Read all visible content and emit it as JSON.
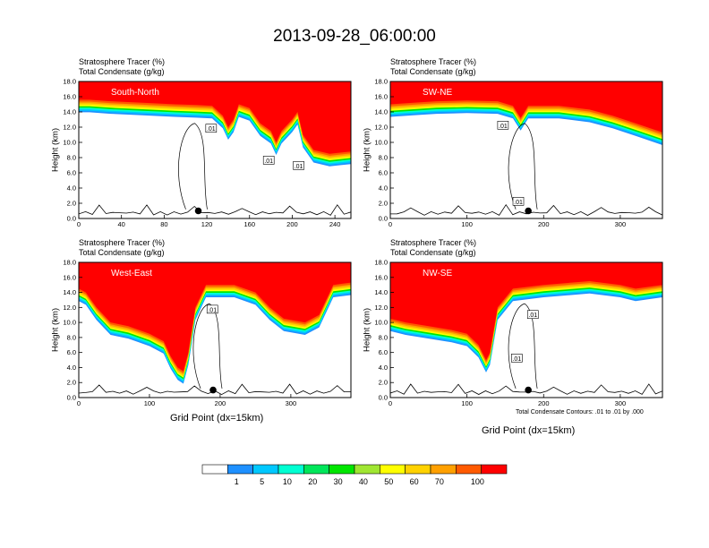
{
  "title": "2013-09-28_06:00:00",
  "label_line1": "Stratosphere Tracer   (%)",
  "label_line2": "Total Condensate   (g/kg)",
  "ylabel": "Height (km)",
  "xlabel": "Grid Point (dx=15km)",
  "contour_note": "Total Condensate Contours: .01 to .01 by .000",
  "contour_label": ".01",
  "colors": {
    "levels": [
      "#ffffff",
      "#1e90ff",
      "#00c8ff",
      "#00ffd2",
      "#00e65a",
      "#00e600",
      "#a0e632",
      "#ffff00",
      "#ffd200",
      "#ffa000",
      "#ff5a00",
      "#ff0000"
    ],
    "red": "#ff0000"
  },
  "colorbar": {
    "labels": [
      "1",
      "5",
      "10",
      "20",
      "30",
      "40",
      "50",
      "60",
      "70",
      "100"
    ]
  },
  "chart_data": [
    {
      "type": "heatmap",
      "name": "South-North",
      "xlim": [
        0,
        255
      ],
      "ylim": [
        0,
        18
      ],
      "xticks": [
        "0",
        "40",
        "80",
        "120",
        "160",
        "200",
        "240"
      ],
      "yticks": [
        "0.0",
        "2.0",
        "4.0",
        "6.0",
        "8.0",
        "10.0",
        "12.0",
        "14.0",
        "16.0",
        "18.0"
      ],
      "tropopause_km": [
        [
          0,
          15.6
        ],
        [
          10,
          15.6
        ],
        [
          30,
          15.4
        ],
        [
          60,
          15.2
        ],
        [
          90,
          15.0
        ],
        [
          110,
          14.9
        ],
        [
          125,
          14.8
        ],
        [
          135,
          13.5
        ],
        [
          140,
          12.0
        ],
        [
          145,
          13.0
        ],
        [
          150,
          15.0
        ],
        [
          160,
          14.5
        ],
        [
          170,
          12.5
        ],
        [
          180,
          11.5
        ],
        [
          185,
          10.0
        ],
        [
          190,
          11.5
        ],
        [
          200,
          13.0
        ],
        [
          205,
          14.0
        ],
        [
          210,
          11.0
        ],
        [
          220,
          9.0
        ],
        [
          235,
          8.5
        ],
        [
          255,
          8.8
        ]
      ],
      "marker": [
        112,
        1.0
      ],
      "contour_labels": [
        [
          124,
          11.8
        ],
        [
          178,
          7.6
        ],
        [
          206,
          6.9
        ]
      ]
    },
    {
      "type": "heatmap",
      "name": "SW-NE",
      "xlim": [
        0,
        355
      ],
      "ylim": [
        0,
        18
      ],
      "xticks": [
        "0",
        "100",
        "200",
        "300"
      ],
      "yticks": [
        "0.0",
        "2.0",
        "4.0",
        "6.0",
        "8.0",
        "10.0",
        "12.0",
        "14.0",
        "16.0",
        "18.0"
      ],
      "tropopause_km": [
        [
          0,
          15.0
        ],
        [
          30,
          15.2
        ],
        [
          60,
          15.4
        ],
        [
          100,
          15.5
        ],
        [
          140,
          15.4
        ],
        [
          160,
          14.8
        ],
        [
          170,
          13.2
        ],
        [
          180,
          14.8
        ],
        [
          220,
          14.8
        ],
        [
          260,
          14.3
        ],
        [
          290,
          13.5
        ],
        [
          320,
          12.5
        ],
        [
          355,
          11.3
        ]
      ],
      "marker": [
        180,
        1.0
      ],
      "contour_labels": [
        [
          147,
          12.2
        ],
        [
          167,
          2.2
        ]
      ]
    },
    {
      "type": "heatmap",
      "name": "West-East",
      "xlim": [
        0,
        385
      ],
      "ylim": [
        0,
        18
      ],
      "xticks": [
        "0",
        "100",
        "200",
        "300"
      ],
      "yticks": [
        "0.0",
        "2.0",
        "4.0",
        "6.0",
        "8.0",
        "10.0",
        "12.0",
        "14.0",
        "16.0",
        "18.0"
      ],
      "tropopause_km": [
        [
          0,
          14.5
        ],
        [
          10,
          14.0
        ],
        [
          25,
          12.0
        ],
        [
          45,
          10.0
        ],
        [
          70,
          9.5
        ],
        [
          100,
          8.5
        ],
        [
          120,
          7.5
        ],
        [
          130,
          5.5
        ],
        [
          140,
          4.0
        ],
        [
          148,
          3.5
        ],
        [
          155,
          6.0
        ],
        [
          165,
          12.0
        ],
        [
          180,
          15.0
        ],
        [
          220,
          15.0
        ],
        [
          250,
          14.0
        ],
        [
          270,
          12.0
        ],
        [
          290,
          10.5
        ],
        [
          320,
          10.0
        ],
        [
          340,
          11.0
        ],
        [
          360,
          15.0
        ],
        [
          385,
          15.3
        ]
      ],
      "marker": [
        190,
        1.0
      ],
      "contour_labels": [
        [
          189,
          11.7
        ]
      ]
    },
    {
      "type": "heatmap",
      "name": "NW-SE",
      "xlim": [
        0,
        355
      ],
      "ylim": [
        0,
        18
      ],
      "xticks": [
        "0",
        "100",
        "200",
        "300"
      ],
      "yticks": [
        "0.0",
        "2.0",
        "4.0",
        "6.0",
        "8.0",
        "10.0",
        "12.0",
        "14.0",
        "16.0",
        "18.0"
      ],
      "tropopause_km": [
        [
          0,
          10.5
        ],
        [
          20,
          10.0
        ],
        [
          50,
          9.5
        ],
        [
          80,
          9.0
        ],
        [
          100,
          8.5
        ],
        [
          115,
          7.0
        ],
        [
          125,
          5.0
        ],
        [
          130,
          6.0
        ],
        [
          140,
          12.0
        ],
        [
          160,
          14.5
        ],
        [
          200,
          15.0
        ],
        [
          260,
          15.5
        ],
        [
          300,
          15.0
        ],
        [
          320,
          14.5
        ],
        [
          355,
          15.0
        ]
      ],
      "marker": [
        180,
        1.0
      ],
      "contour_labels": [
        [
          186,
          11.0
        ],
        [
          165,
          5.2
        ]
      ]
    }
  ]
}
